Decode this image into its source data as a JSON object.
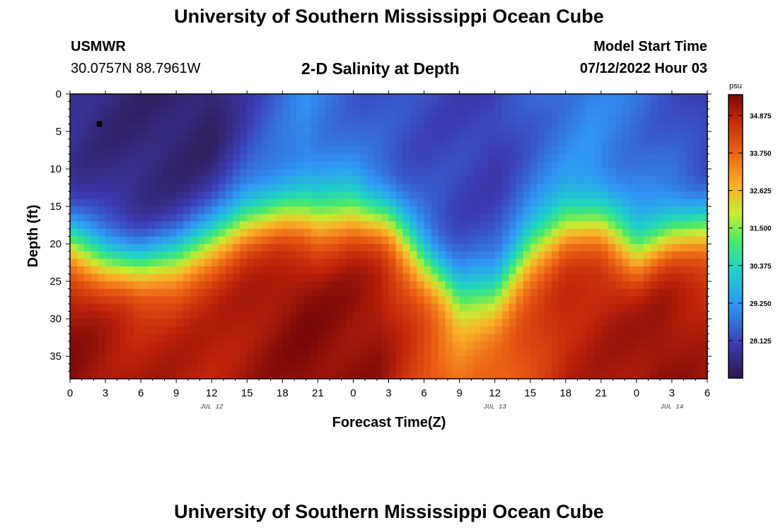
{
  "header": {
    "title": "University of Southern Mississippi Ocean Cube",
    "station": "USMWR",
    "coords": "30.0757N  88.7961W",
    "chart_title": "2-D Salinity at Depth",
    "start_label": "Model Start Time",
    "start_value": "07/12/2022 Hour 03"
  },
  "footer": {
    "title": "University of Southern Mississippi Ocean Cube"
  },
  "chart_data": {
    "type": "heatmap",
    "title": "2-D Salinity at Depth",
    "xlabel": "Forecast Time(Z)",
    "ylabel": "Depth (ft)",
    "x_ticks": [
      "0",
      "3",
      "6",
      "9",
      "12",
      "15",
      "18",
      "21",
      "0",
      "3",
      "6",
      "9",
      "12",
      "15",
      "18",
      "21",
      "0",
      "3",
      "6"
    ],
    "x_range_hours": [
      0,
      54
    ],
    "y_ticks": [
      0,
      5,
      10,
      15,
      20,
      25,
      30,
      35
    ],
    "y_range_ft": [
      0,
      38
    ],
    "date_labels": [
      {
        "text": "JUL 12",
        "hour": 12
      },
      {
        "text": "JUL 13",
        "hour": 36
      },
      {
        "text": "JUL 14",
        "hour": 51
      }
    ],
    "colorbar": {
      "unit": "psu",
      "min": 27.0,
      "max": 35.5,
      "ticks": [
        "34.875",
        "33.750",
        "32.625",
        "31.500",
        "30.375",
        "29.250",
        "28.125"
      ]
    },
    "marker": {
      "hour": 2.5,
      "depth_ft": 4
    },
    "halocline_depth_ft": [
      {
        "hour": 0,
        "depth": 20
      },
      {
        "hour": 3,
        "depth": 22
      },
      {
        "hour": 6,
        "depth": 23
      },
      {
        "hour": 9,
        "depth": 22
      },
      {
        "hour": 12,
        "depth": 19
      },
      {
        "hour": 15,
        "depth": 16.5
      },
      {
        "hour": 18,
        "depth": 16
      },
      {
        "hour": 21,
        "depth": 17
      },
      {
        "hour": 24,
        "depth": 15.5
      },
      {
        "hour": 27,
        "depth": 17
      },
      {
        "hour": 30,
        "depth": 22
      },
      {
        "hour": 33,
        "depth": 27
      },
      {
        "hour": 36,
        "depth": 26
      },
      {
        "hour": 39,
        "depth": 20
      },
      {
        "hour": 42,
        "depth": 17
      },
      {
        "hour": 45,
        "depth": 17.5
      },
      {
        "hour": 48,
        "depth": 21
      },
      {
        "hour": 51,
        "depth": 18.5
      },
      {
        "hour": 54,
        "depth": 18
      }
    ],
    "surface_salinity_psu": [
      {
        "hour": 0,
        "value": 27.6
      },
      {
        "hour": 6,
        "value": 27.4
      },
      {
        "hour": 12,
        "value": 27.3
      },
      {
        "hour": 16,
        "value": 28.2
      },
      {
        "hour": 20,
        "value": 29.0
      },
      {
        "hour": 25,
        "value": 28.4
      },
      {
        "hour": 30,
        "value": 28.2
      },
      {
        "hour": 36,
        "value": 28.0
      },
      {
        "hour": 40,
        "value": 28.6
      },
      {
        "hour": 44,
        "value": 29.0
      },
      {
        "hour": 48,
        "value": 28.7
      },
      {
        "hour": 54,
        "value": 28.0
      }
    ],
    "bottom_salinity_psu": [
      {
        "hour": 0,
        "value": 35.3
      },
      {
        "hour": 6,
        "value": 35.0
      },
      {
        "hour": 12,
        "value": 34.9
      },
      {
        "hour": 20,
        "value": 35.4
      },
      {
        "hour": 26,
        "value": 35.2
      },
      {
        "hour": 33,
        "value": 33.5
      },
      {
        "hour": 37,
        "value": 33.8
      },
      {
        "hour": 42,
        "value": 34.8
      },
      {
        "hour": 50,
        "value": 35.3
      },
      {
        "hour": 54,
        "value": 35.0
      }
    ]
  }
}
